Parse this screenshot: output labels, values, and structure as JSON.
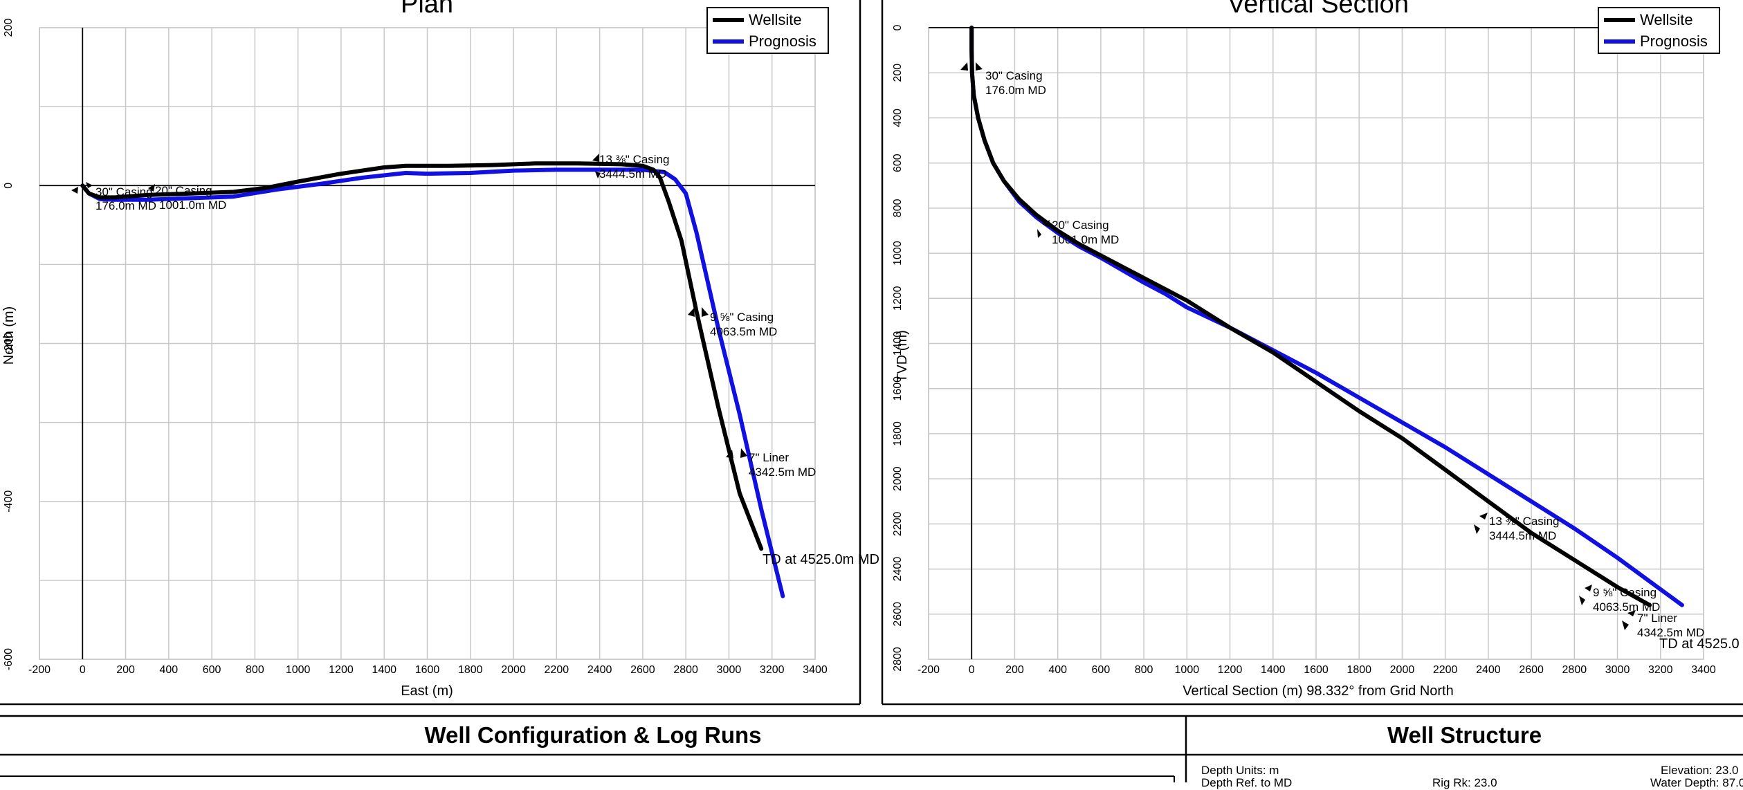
{
  "charts": {
    "plan": {
      "title": "Plan",
      "xlabel": "East (m)",
      "ylabel": "North (m)",
      "xticks": [
        "-200",
        "0",
        "200",
        "400",
        "600",
        "800",
        "1000",
        "1200",
        "1400",
        "1600",
        "1800",
        "2000",
        "2200",
        "2400",
        "2600",
        "2800",
        "3000",
        "3200",
        "3400"
      ],
      "yticks": [
        "200",
        "0",
        "-200",
        "-400",
        "-600"
      ],
      "legend": [
        "Wellsite",
        "Prognosis"
      ],
      "annotations": [
        {
          "l1": "30\" Casing",
          "l2": "176.0m MD"
        },
        {
          "l1": "20\" Casing",
          "l2": "1001.0m MD"
        },
        {
          "l1": "13 ⅜\" Casing",
          "l2": "3444.5m MD"
        },
        {
          "l1": "9 ⅝\" Casing",
          "l2": "4063.5m MD"
        },
        {
          "l1": "7\" Liner",
          "l2": "4342.5m MD"
        },
        {
          "l1": "TD at 4525.0m MD"
        }
      ]
    },
    "vsec": {
      "title": "Vertical Section",
      "xlabel": "Vertical Section (m) 98.332° from Grid North",
      "ylabel": "TVD (m)",
      "xticks": [
        "-200",
        "0",
        "200",
        "400",
        "600",
        "800",
        "1000",
        "1200",
        "1400",
        "1600",
        "1800",
        "2000",
        "2200",
        "2400",
        "2600",
        "2800",
        "3000",
        "3200",
        "3400"
      ],
      "yticks": [
        "0",
        "200",
        "400",
        "600",
        "800",
        "1000",
        "1200",
        "1400",
        "1600",
        "1800",
        "2000",
        "2200",
        "2400",
        "2600",
        "2800"
      ],
      "legend": [
        "Wellsite",
        "Prognosis"
      ],
      "annotations": [
        {
          "l1": "30\" Casing",
          "l2": "176.0m MD"
        },
        {
          "l1": "20\" Casing",
          "l2": "1001.0m MD"
        },
        {
          "l1": "13 ⅜\" Casing",
          "l2": "3444.5m MD"
        },
        {
          "l1": "9 ⅝\" Casing",
          "l2": "4063.5m MD"
        },
        {
          "l1": "7\" Liner",
          "l2": "4342.5m MD"
        },
        {
          "l1": "TD at 4525.0"
        }
      ]
    }
  },
  "chart_data": [
    {
      "type": "line",
      "title": "Plan",
      "xlabel": "East (m)",
      "ylabel": "North (m)",
      "xlim": [
        -200,
        3400
      ],
      "ylim": [
        -600,
        200
      ],
      "grid": true,
      "legend_position": "top-right",
      "series": [
        {
          "name": "Wellsite",
          "color": "#000000",
          "x": [
            0,
            30,
            80,
            150,
            300,
            500,
            700,
            850,
            1000,
            1200,
            1400,
            1500,
            1700,
            1900,
            2100,
            2300,
            2500,
            2600,
            2650,
            2680,
            2720,
            2780,
            2850,
            2950,
            3050,
            3150
          ],
          "y": [
            0,
            -10,
            -15,
            -15,
            -12,
            -10,
            -8,
            -3,
            5,
            15,
            23,
            25,
            25,
            26,
            28,
            28,
            27,
            25,
            20,
            10,
            -20,
            -70,
            -160,
            -280,
            -390,
            -460
          ]
        },
        {
          "name": "Prognosis",
          "color": "#1010e0",
          "x": [
            0,
            30,
            80,
            150,
            300,
            500,
            700,
            900,
            1100,
            1300,
            1500,
            1600,
            1800,
            2000,
            2200,
            2400,
            2600,
            2700,
            2750,
            2800,
            2850,
            2950,
            3050,
            3150,
            3250
          ],
          "y": [
            0,
            -10,
            -17,
            -18,
            -18,
            -16,
            -14,
            -5,
            2,
            10,
            16,
            15,
            16,
            19,
            20,
            20,
            20,
            17,
            8,
            -10,
            -60,
            -180,
            -290,
            -410,
            -520
          ]
        }
      ],
      "annotations": [
        {
          "text": "30\" Casing 176.0m MD",
          "x": 0,
          "y": 0
        },
        {
          "text": "20\" Casing 1001.0m MD",
          "x": 340,
          "y": -10
        },
        {
          "text": "13 ⅜\" Casing 3444.5m MD",
          "x": 2380,
          "y": 28
        },
        {
          "text": "9 ⅝\" Casing 4063.5m MD",
          "x": 2880,
          "y": -160
        },
        {
          "text": "7\" Liner 4342.5m MD",
          "x": 3050,
          "y": -340
        },
        {
          "text": "TD at 4525.0m MD",
          "x": 3150,
          "y": -460
        }
      ]
    },
    {
      "type": "line",
      "title": "Vertical Section",
      "xlabel": "Vertical Section (m) 98.332° from Grid North",
      "ylabel": "TVD (m)",
      "xlim": [
        -200,
        3400
      ],
      "ylim": [
        2800,
        0
      ],
      "grid": true,
      "legend_position": "top-right",
      "series": [
        {
          "name": "Wellsite",
          "color": "#000000",
          "x": [
            0,
            0,
            2,
            10,
            30,
            60,
            100,
            150,
            220,
            300,
            400,
            500,
            600,
            700,
            800,
            900,
            1000,
            1200,
            1400,
            1600,
            1800,
            2000,
            2200,
            2400,
            2600,
            2800,
            3000,
            3150
          ],
          "y": [
            0,
            100,
            200,
            300,
            400,
            500,
            600,
            680,
            760,
            830,
            900,
            960,
            1010,
            1060,
            1110,
            1160,
            1210,
            1330,
            1440,
            1570,
            1700,
            1820,
            1960,
            2100,
            2240,
            2360,
            2480,
            2560
          ]
        },
        {
          "name": "Prognosis",
          "color": "#1010e0",
          "x": [
            0,
            0,
            2,
            10,
            30,
            60,
            100,
            150,
            220,
            300,
            400,
            500,
            600,
            700,
            800,
            900,
            1000,
            1200,
            1400,
            1600,
            1800,
            2000,
            2200,
            2400,
            2600,
            2800,
            3000,
            3200,
            3300
          ],
          "y": [
            0,
            100,
            200,
            300,
            400,
            500,
            600,
            680,
            770,
            840,
            910,
            970,
            1020,
            1075,
            1130,
            1180,
            1240,
            1330,
            1430,
            1530,
            1640,
            1750,
            1860,
            1980,
            2100,
            2220,
            2350,
            2490,
            2560
          ]
        }
      ],
      "annotations": [
        {
          "text": "30\" Casing 176.0m MD",
          "x": 0,
          "y": 176
        },
        {
          "text": "20\" Casing 1001.0m MD",
          "x": 320,
          "y": 880
        },
        {
          "text": "13 ⅜\" Casing 3444.5m MD",
          "x": 2350,
          "y": 2200
        },
        {
          "text": "9 ⅝\" Casing 4063.5m MD",
          "x": 2830,
          "y": 2540
        },
        {
          "text": "7\" Liner 4342.5m MD",
          "x": 3050,
          "y": 2640
        },
        {
          "text": "TD at 4525.0",
          "x": 3150,
          "y": 2700
        }
      ]
    }
  ],
  "bottom": {
    "left_title": "Well Configuration & Log Runs",
    "right_title": "Well Structure",
    "depth_units": "Depth Units: m",
    "depth_ref_partial": "Depth Ref. to MD",
    "rig_partial": "Rig Rk: 23.0",
    "elevation": "Elevation: 23.0",
    "water_depth_partial": "Water Depth: 87.0"
  }
}
